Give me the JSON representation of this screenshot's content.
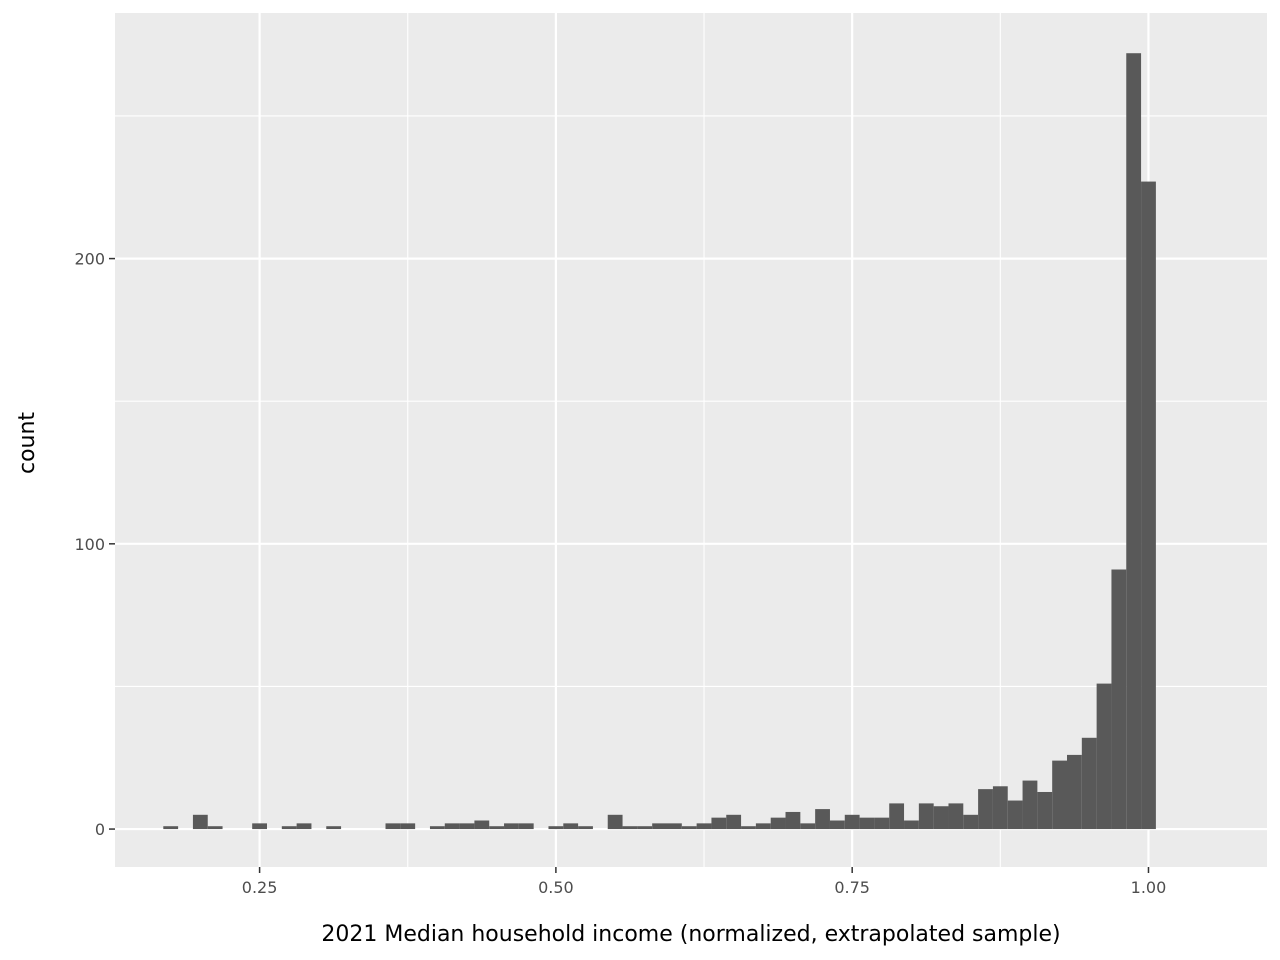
{
  "chart_data": {
    "type": "bar",
    "title": "",
    "xlabel": "2021 Median household income (normalized, extrapolated sample)",
    "ylabel": "count",
    "xlim": [
      0.128,
      1.1
    ],
    "ylim": [
      -13.3,
      286.1
    ],
    "x_ticks": [
      0.25,
      0.5,
      0.75,
      1.0
    ],
    "x_tick_labels": [
      "0.25",
      "0.50",
      "0.75",
      "1.00"
    ],
    "y_ticks": [
      0,
      100,
      200
    ],
    "y_tick_labels": [
      "0",
      "100",
      "200"
    ],
    "grid": true,
    "legend": "none",
    "bin_width": 0.0125,
    "bins_start": 0.175,
    "values": [
      1,
      0,
      5,
      1,
      0,
      0,
      2,
      0,
      1,
      2,
      0,
      1,
      0,
      0,
      0,
      2,
      2,
      0,
      1,
      2,
      2,
      3,
      1,
      2,
      2,
      0,
      1,
      2,
      1,
      0,
      5,
      1,
      1,
      2,
      2,
      1,
      2,
      4,
      5,
      1,
      2,
      4,
      6,
      2,
      7,
      3,
      5,
      4,
      4,
      9,
      3,
      9,
      8,
      9,
      5,
      14,
      15,
      10,
      17,
      13,
      24,
      26,
      32,
      51,
      91,
      272,
      227
    ],
    "colors": {
      "panel": "#ebebeb",
      "grid_major": "#ffffff",
      "bar": "#595959",
      "tick_text": "#4d4d4d",
      "tick_mark": "#333333",
      "axis_title": "#000000"
    }
  }
}
